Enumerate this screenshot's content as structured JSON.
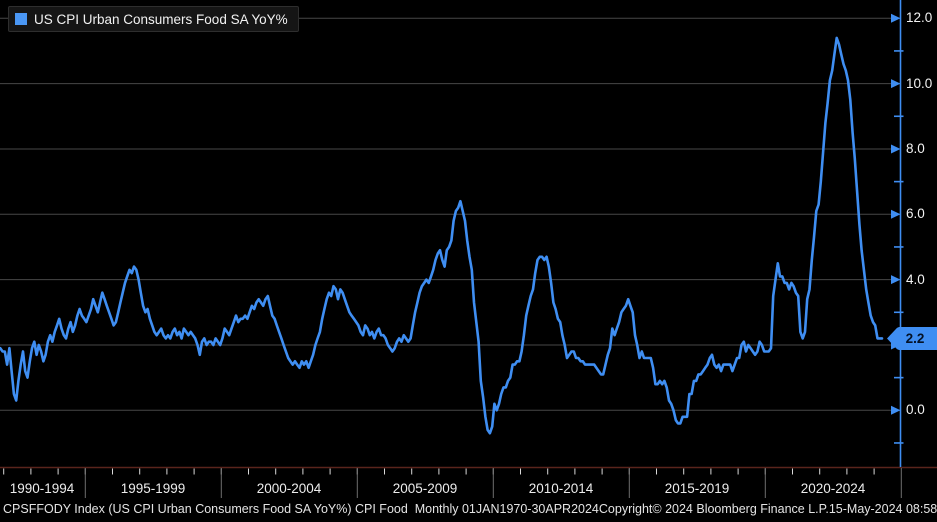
{
  "legend": {
    "label": "US CPI Urban Consumers Food SA YoY%",
    "swatch_color": "#4a97f5"
  },
  "colors": {
    "background": "#000000",
    "line": "#3f8ef2",
    "grid": "#474747",
    "x_axis_line": "#5a241c",
    "year_tick": "#d9d9d9",
    "bin_separator": "#6e6e6e",
    "text": "#f0f0f0",
    "tag_fill": "#3f8ef2",
    "tag_text": "#041226"
  },
  "y_axis": {
    "major_ticks": [
      0,
      2,
      4,
      6,
      8,
      10,
      12
    ],
    "labels": [
      "12.0",
      "10.0",
      "8.0",
      "6.0",
      "4.0",
      "2.0",
      "0.0"
    ],
    "minor_ticks": [
      -1,
      1,
      3,
      5,
      7,
      9,
      11
    ],
    "last_value_label": "2.2"
  },
  "x_axis": {
    "bin_labels": [
      "1990-1994",
      "1995-1999",
      "2000-2004",
      "2005-2009",
      "2010-2014",
      "2015-2019",
      "2020-2024"
    ],
    "bin_boundary_years": [
      1995,
      2000,
      2005,
      2010,
      2015,
      2020,
      2025
    ]
  },
  "footer": {
    "left": "CPSFFODY Index (US CPI Urban Consumers Food SA YoY%) CPI Food  Monthly 01JAN1970-30APR2024",
    "copyright": "Copyright© 2024 Bloomberg Finance L.P.",
    "datetime": "15-May-2024 08:58:36"
  },
  "chart_data": {
    "type": "line",
    "title": "US CPI Urban Consumers Food SA YoY%",
    "ylabel": "YoY %",
    "ylim": [
      -1.7,
      12.6
    ],
    "grid": true,
    "legend_position": "top-left",
    "frequency": "monthly",
    "start_year": 1991,
    "start_month": 11,
    "end_label": "30APR2024",
    "last_value": 2.2,
    "series": [
      {
        "name": "US CPI Urban Consumers Food SA YoY%",
        "values": [
          1.9,
          1.8,
          1.8,
          1.4,
          1.9,
          1.2,
          0.5,
          0.3,
          0.9,
          1.4,
          1.8,
          1.2,
          1.0,
          1.5,
          1.9,
          2.1,
          1.7,
          2.0,
          1.8,
          1.5,
          1.7,
          2.1,
          2.3,
          2.1,
          2.4,
          2.6,
          2.8,
          2.5,
          2.3,
          2.2,
          2.5,
          2.7,
          2.4,
          2.6,
          2.9,
          3.1,
          2.9,
          2.8,
          2.7,
          2.9,
          3.1,
          3.4,
          3.2,
          3.0,
          3.3,
          3.6,
          3.4,
          3.2,
          3.0,
          2.8,
          2.6,
          2.7,
          3.0,
          3.3,
          3.6,
          3.9,
          4.1,
          4.3,
          4.2,
          4.4,
          4.3,
          4.0,
          3.6,
          3.2,
          3.0,
          3.1,
          2.8,
          2.6,
          2.4,
          2.3,
          2.4,
          2.5,
          2.3,
          2.2,
          2.3,
          2.2,
          2.4,
          2.5,
          2.3,
          2.4,
          2.2,
          2.5,
          2.4,
          2.3,
          2.4,
          2.3,
          2.2,
          2.0,
          1.7,
          2.1,
          2.2,
          2.0,
          2.1,
          2.1,
          2.0,
          2.2,
          2.1,
          2.0,
          2.2,
          2.5,
          2.4,
          2.3,
          2.5,
          2.7,
          2.9,
          2.7,
          2.8,
          2.8,
          2.9,
          2.8,
          3.0,
          3.2,
          3.1,
          3.3,
          3.4,
          3.3,
          3.2,
          3.4,
          3.5,
          3.2,
          2.9,
          2.8,
          2.6,
          2.4,
          2.2,
          2.0,
          1.8,
          1.6,
          1.5,
          1.4,
          1.5,
          1.4,
          1.3,
          1.5,
          1.4,
          1.5,
          1.3,
          1.5,
          1.7,
          2.0,
          2.2,
          2.4,
          2.8,
          3.1,
          3.4,
          3.6,
          3.5,
          3.8,
          3.7,
          3.4,
          3.7,
          3.6,
          3.4,
          3.2,
          3.0,
          2.9,
          2.8,
          2.7,
          2.6,
          2.4,
          2.3,
          2.6,
          2.5,
          2.3,
          2.4,
          2.2,
          2.4,
          2.5,
          2.3,
          2.3,
          2.2,
          2.0,
          1.9,
          1.8,
          1.9,
          2.1,
          2.2,
          2.1,
          2.3,
          2.2,
          2.1,
          2.2,
          2.6,
          3.0,
          3.3,
          3.6,
          3.8,
          3.9,
          4.0,
          3.9,
          4.1,
          4.3,
          4.6,
          4.8,
          4.9,
          4.6,
          4.4,
          4.9,
          5.0,
          5.2,
          5.8,
          6.1,
          6.2,
          6.4,
          6.1,
          5.8,
          5.2,
          4.7,
          4.3,
          3.3,
          2.7,
          2.1,
          0.9,
          0.4,
          -0.2,
          -0.6,
          -0.7,
          -0.5,
          0.2,
          0.0,
          0.2,
          0.5,
          0.7,
          0.7,
          0.9,
          1.0,
          1.4,
          1.4,
          1.5,
          1.5,
          1.8,
          2.3,
          2.9,
          3.2,
          3.5,
          3.7,
          4.2,
          4.6,
          4.7,
          4.7,
          4.6,
          4.7,
          4.4,
          3.9,
          3.3,
          3.1,
          2.8,
          2.7,
          2.3,
          2.0,
          1.6,
          1.7,
          1.8,
          1.8,
          1.6,
          1.6,
          1.5,
          1.5,
          1.4,
          1.4,
          1.4,
          1.4,
          1.4,
          1.3,
          1.2,
          1.1,
          1.1,
          1.4,
          1.7,
          1.9,
          2.5,
          2.3,
          2.5,
          2.7,
          3.0,
          3.1,
          3.2,
          3.4,
          3.2,
          3.0,
          2.3,
          2.0,
          1.6,
          1.8,
          1.6,
          1.6,
          1.6,
          1.6,
          1.3,
          0.8,
          0.8,
          0.9,
          0.8,
          0.9,
          0.7,
          0.3,
          0.2,
          0.0,
          -0.3,
          -0.4,
          -0.4,
          -0.2,
          -0.2,
          -0.2,
          0.5,
          0.5,
          0.9,
          0.9,
          1.1,
          1.1,
          1.2,
          1.3,
          1.4,
          1.6,
          1.7,
          1.4,
          1.3,
          1.4,
          1.2,
          1.4,
          1.4,
          1.4,
          1.4,
          1.2,
          1.4,
          1.6,
          1.6,
          2.0,
          2.1,
          1.8,
          2.0,
          1.9,
          1.8,
          1.7,
          1.8,
          2.1,
          2.0,
          1.8,
          1.8,
          1.8,
          1.9,
          3.5,
          4.0,
          4.5,
          4.1,
          4.1,
          3.9,
          3.9,
          3.7,
          3.9,
          3.8,
          3.6,
          3.5,
          2.4,
          2.2,
          2.4,
          3.4,
          3.7,
          4.6,
          5.3,
          6.1,
          6.3,
          7.0,
          7.9,
          8.8,
          9.4,
          10.1,
          10.4,
          10.9,
          11.4,
          11.2,
          10.9,
          10.6,
          10.4,
          10.1,
          9.5,
          8.5,
          7.7,
          6.7,
          5.7,
          4.9,
          4.3,
          3.7,
          3.3,
          2.9,
          2.7,
          2.6,
          2.2,
          2.2,
          2.2
        ]
      }
    ]
  }
}
